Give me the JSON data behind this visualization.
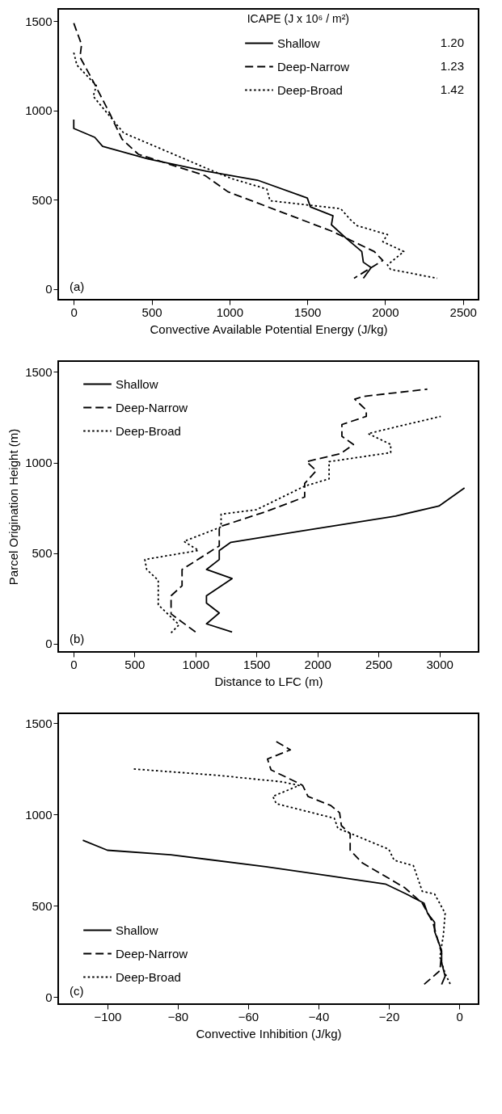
{
  "chart_data": [
    {
      "type": "line",
      "xlabel": "Convective Available Potential Energy (J/kg)",
      "xlim": [
        -100,
        2600
      ],
      "ylim": [
        -60,
        1570
      ],
      "xticks": [
        0,
        500,
        1000,
        1500,
        2000,
        2500
      ],
      "yticks": [
        0,
        500,
        1000,
        1500
      ],
      "legend": "top right",
      "legend_title": "ICAPE (J x 10⁶ / m²)",
      "annotations": [
        "(a)",
        "1.20",
        "1.23",
        "1.42"
      ],
      "series": [
        {
          "name": "Shallow",
          "color": "#000000",
          "line_style": "solid",
          "x": [
            0,
            0,
            135,
            185,
            475,
            850,
            1180,
            1500,
            1520,
            1665,
            1655,
            1755,
            1850,
            1860,
            1910,
            1860
          ],
          "values": [
            950,
            900,
            850,
            800,
            730,
            660,
            610,
            510,
            460,
            410,
            360,
            280,
            210,
            150,
            120,
            60
          ]
        },
        {
          "name": "Deep-Narrow",
          "color": "#000000",
          "line_style": "dashed",
          "x": [
            0,
            50,
            40,
            115,
            225,
            310,
            415,
            845,
            990,
            1655,
            1930,
            1985,
            1800
          ],
          "values": [
            1490,
            1370,
            1300,
            1180,
            995,
            840,
            755,
            635,
            545,
            325,
            210,
            160,
            60
          ]
        },
        {
          "name": "Deep-Broad",
          "color": "#000000",
          "line_style": "dotted",
          "x": [
            0,
            20,
            145,
            125,
            320,
            870,
            1010,
            1240,
            1260,
            1715,
            1775,
            1820,
            2015,
            1985,
            2120,
            2015,
            2035,
            2335
          ],
          "values": [
            1325,
            1255,
            1140,
            1080,
            875,
            670,
            620,
            560,
            495,
            450,
            390,
            355,
            305,
            265,
            210,
            135,
            110,
            60
          ]
        }
      ]
    },
    {
      "type": "line",
      "xlabel": "Distance to LFC (m)",
      "ylabel": "Parcel Origination Height (m)",
      "xlim": [
        -125,
        3320
      ],
      "ylim": [
        -45,
        1560
      ],
      "xticks": [
        0,
        500,
        1000,
        1500,
        2000,
        2500,
        3000
      ],
      "yticks": [
        0,
        500,
        1000,
        1500
      ],
      "legend": "top left",
      "annotations": [
        "(b)"
      ],
      "series": [
        {
          "name": "Shallow",
          "color": "#000000",
          "line_style": "solid",
          "x": [
            1300,
            1090,
            1195,
            1090,
            1090,
            1300,
            1090,
            1195,
            1195,
            1290,
            1845,
            2640,
            2995,
            3205
          ],
          "values": [
            65,
            110,
            170,
            225,
            265,
            360,
            410,
            465,
            515,
            560,
            620,
            705,
            760,
            860
          ]
        },
        {
          "name": "Deep-Narrow",
          "color": "#000000",
          "line_style": "dashed",
          "x": [
            1000,
            800,
            800,
            890,
            890,
            1195,
            1195,
            1580,
            1895,
            1895,
            1990,
            1910,
            2190,
            2295,
            2200,
            2200,
            2400,
            2400,
            2305,
            2375,
            2900
          ],
          "values": [
            65,
            165,
            265,
            320,
            410,
            540,
            645,
            730,
            810,
            885,
            955,
            1005,
            1050,
            1100,
            1145,
            1210,
            1255,
            1290,
            1350,
            1365,
            1405
          ]
        },
        {
          "name": "Deep-Broad",
          "color": "#000000",
          "line_style": "dotted",
          "x": [
            800,
            865,
            695,
            695,
            600,
            585,
            1025,
            905,
            1210,
            1210,
            1500,
            1895,
            2095,
            2095,
            2600,
            2600,
            2415,
            3010
          ],
          "values": [
            60,
            105,
            215,
            350,
            410,
            465,
            515,
            565,
            645,
            715,
            740,
            870,
            910,
            1005,
            1055,
            1100,
            1160,
            1255
          ]
        }
      ]
    },
    {
      "type": "line",
      "xlabel": "Convective Inhibition (J/kg)",
      "xlim": [
        -114,
        5.5
      ],
      "ylim": [
        -38,
        1555
      ],
      "xticks": [
        -100,
        -80,
        -60,
        -40,
        -20,
        0
      ],
      "yticks": [
        0,
        500,
        1000,
        1500
      ],
      "legend": "bottom left",
      "annotations": [
        "(c)"
      ],
      "series": [
        {
          "name": "Shallow",
          "color": "#000000",
          "line_style": "solid",
          "x": [
            -107,
            -100,
            -82,
            -55,
            -37,
            -21,
            -15,
            -10,
            -9,
            -7,
            -7,
            -5,
            -5,
            -4,
            -5
          ],
          "values": [
            860,
            805,
            780,
            715,
            665,
            620,
            565,
            515,
            460,
            410,
            360,
            255,
            190,
            115,
            70
          ]
        },
        {
          "name": "Deep-Narrow",
          "color": "#000000",
          "line_style": "dashed",
          "x": [
            -52,
            -48,
            -54.5,
            -53.5,
            -46.5,
            -44.5,
            -43,
            -36.5,
            -34,
            -33.5,
            -31,
            -31,
            -27.5,
            -15.5,
            -10.5,
            -7.5,
            -5,
            -5.5,
            -10
          ],
          "values": [
            1400,
            1355,
            1305,
            1245,
            1180,
            1160,
            1100,
            1050,
            1010,
            940,
            895,
            805,
            735,
            600,
            515,
            410,
            240,
            145,
            70
          ]
        },
        {
          "name": "Deep-Broad",
          "color": "#000000",
          "line_style": "dotted",
          "x": [
            -92.5,
            -68.5,
            -50.5,
            -45.5,
            -53,
            -52,
            -35.5,
            -34.5,
            -30,
            -20,
            -18.5,
            -13,
            -10.5,
            -7,
            -4,
            -4.5,
            -5.5,
            -4,
            -2.5
          ],
          "values": [
            1250,
            1215,
            1180,
            1160,
            1100,
            1060,
            980,
            925,
            890,
            810,
            750,
            720,
            580,
            565,
            460,
            340,
            220,
            130,
            70
          ]
        }
      ]
    }
  ]
}
